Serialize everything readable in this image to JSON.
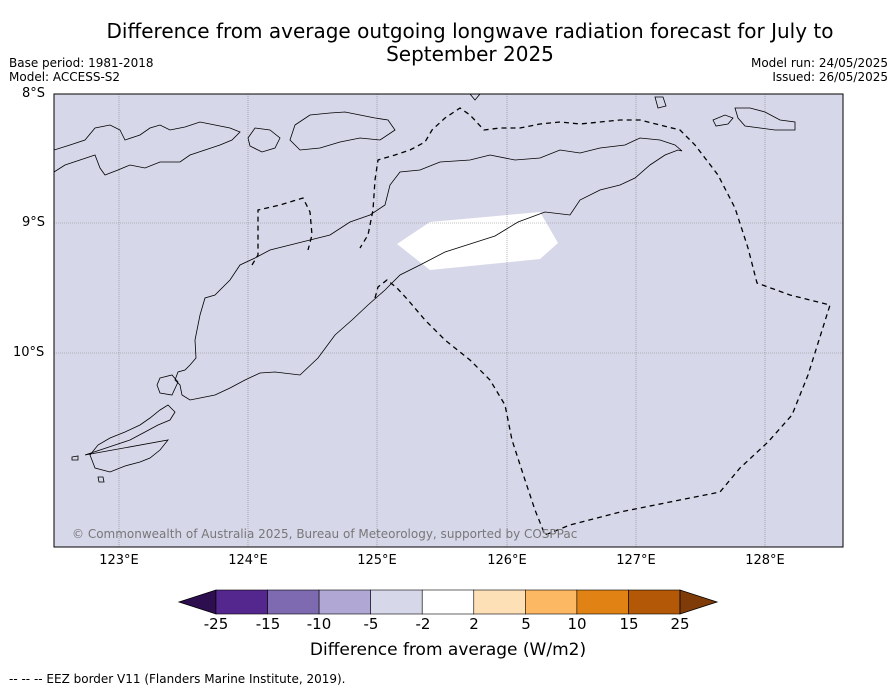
{
  "title": "Difference from average outgoing longwave radiation forecast for July to September 2025",
  "base_period": "Base period: 1981-2018",
  "model": "Model: ACCESS-S2",
  "model_run": "Model run: 24/05/2025",
  "issued": "Issued: 26/05/2025",
  "copyright": "© Commonwealth of Australia 2025, Bureau of Meteorology, supported by COSPPac",
  "eez_note": "--  --  -- EEZ border V11 (Flanders Marine Institute, 2019).",
  "lat_labels": [
    "8°S",
    "9°S",
    "10°S"
  ],
  "lon_labels": [
    "123°E",
    "124°E",
    "125°E",
    "126°E",
    "127°E",
    "128°E"
  ],
  "colorbar": {
    "title": "Difference from average (W/m2)",
    "ticks": [
      "-25",
      "-15",
      "-10",
      "-5",
      "-2",
      "2",
      "5",
      "10",
      "15",
      "25"
    ],
    "colors": [
      "#2d0e4f",
      "#54278f",
      "#7d6ab0",
      "#b0a7d4",
      "#d7d7ea",
      "#ffffff",
      "#fee0b6",
      "#fdb863",
      "#e08214",
      "#b35806",
      "#7f3b08"
    ]
  },
  "map": {
    "background_category": "-5 to -2",
    "background_color": "#d7d7ea",
    "anomaly_patch_category": "-2 to 2",
    "anomaly_patch_color": "#ffffff"
  }
}
